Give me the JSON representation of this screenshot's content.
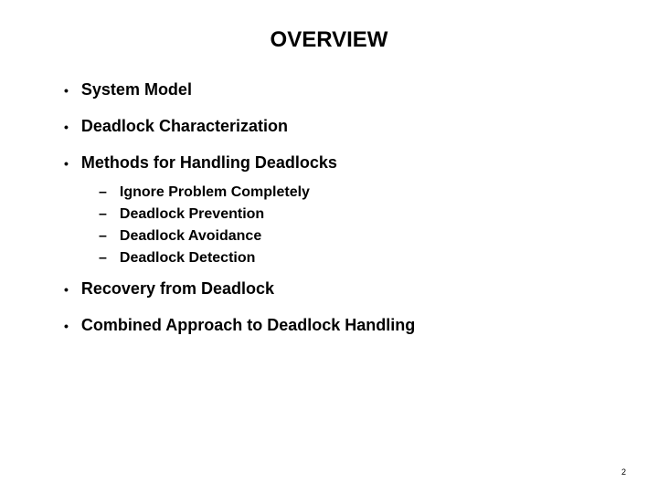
{
  "title": "OVERVIEW",
  "bullets": {
    "item0": "System Model",
    "item1": "Deadlock Characterization",
    "item2": "Methods for Handling Deadlocks",
    "sub0": "Ignore Problem Completely",
    "sub1": "Deadlock Prevention",
    "sub2": "Deadlock Avoidance",
    "sub3": "Deadlock Detection",
    "item3": "Recovery from Deadlock",
    "item4": "Combined Approach to Deadlock Handling"
  },
  "markers": {
    "bullet": "•",
    "dash": "–"
  },
  "pageNumber": "2"
}
